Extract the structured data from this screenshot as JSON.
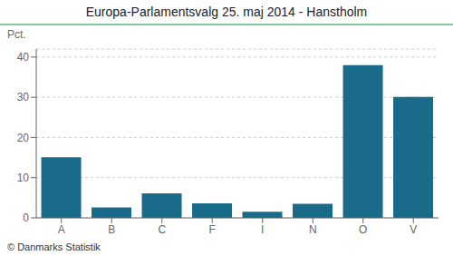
{
  "chart_data": {
    "type": "bar",
    "title": "Europa-Parlamentsvalg 25. maj 2014 - Hanstholm",
    "categories": [
      "A",
      "B",
      "C",
      "F",
      "I",
      "N",
      "O",
      "V"
    ],
    "values": [
      15.1,
      2.6,
      6.1,
      3.6,
      1.5,
      3.5,
      38.0,
      30.1
    ],
    "color": "#1a6b8a",
    "ylabel": "Pct.",
    "ylim": [
      0,
      42
    ],
    "yticks": [
      0,
      10,
      20,
      30,
      40
    ],
    "grid": true,
    "annotations": [
      "© Danmarks Statistik"
    ]
  }
}
